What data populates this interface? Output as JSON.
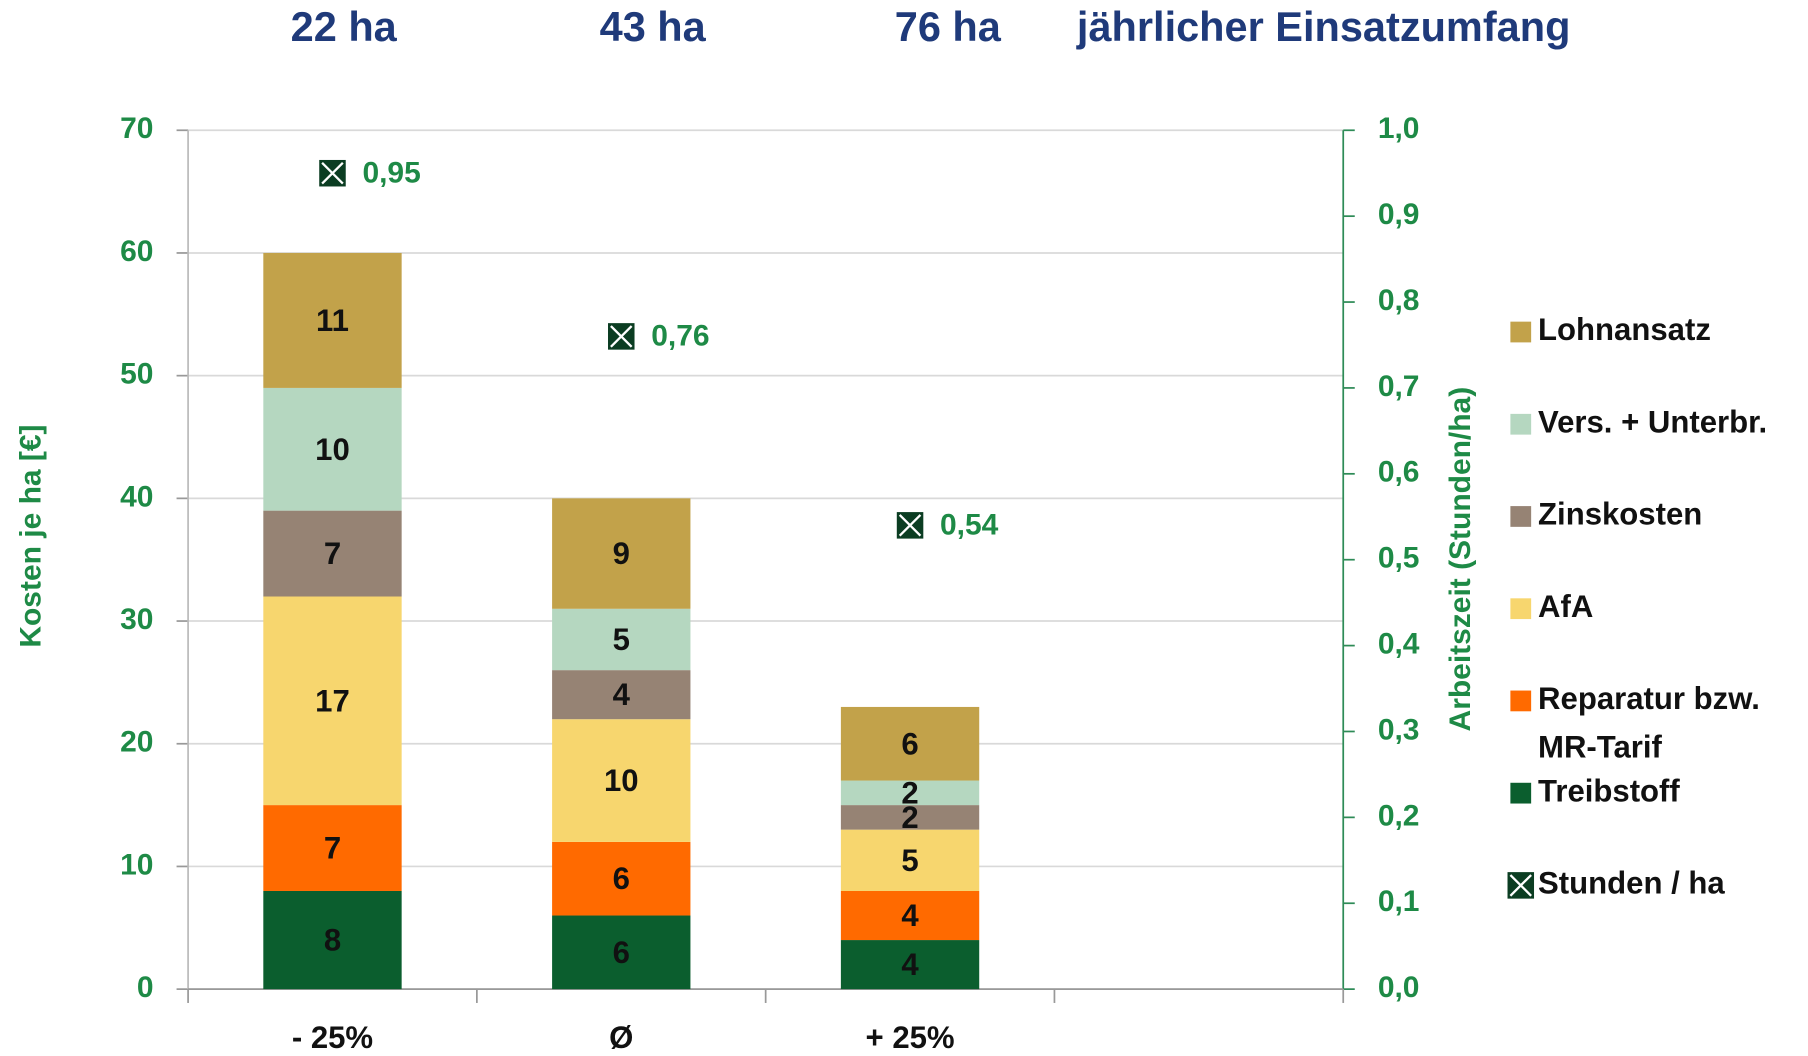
{
  "chart_data": {
    "type": "bar",
    "stacked": true,
    "annotations": [
      "22 ha",
      "43 ha",
      "76 ha",
      "jährlicher Einsatzumfang"
    ],
    "ylabel": "Kosten je ha [€]",
    "y2label": "Arbeitszeit (Stunden/ha)",
    "categories": [
      "- 25%",
      "Ø",
      "+ 25%",
      null
    ],
    "ylim": [
      0,
      70
    ],
    "yticks": [
      0,
      10,
      20,
      30,
      40,
      50,
      60,
      70
    ],
    "y2lim": [
      0,
      1
    ],
    "y2ticks": [
      {
        "value": 0,
        "label": "0,0"
      },
      {
        "value": 0.1,
        "label": "0,1"
      },
      {
        "value": 0.2,
        "label": "0,2"
      },
      {
        "value": 0.3,
        "label": "0,3"
      },
      {
        "value": 0.4,
        "label": "0,4"
      },
      {
        "value": 0.5,
        "label": "0,5"
      },
      {
        "value": 0.6,
        "label": "0,6"
      },
      {
        "value": 0.7,
        "label": "0,7"
      },
      {
        "value": 0.8,
        "label": "0,8"
      },
      {
        "value": 0.9,
        "label": "0,9"
      },
      {
        "value": 1,
        "label": "1,0"
      }
    ],
    "grid": true,
    "legend": "right",
    "series": [
      {
        "name": "Treibstoff",
        "color": "#0b5e2e",
        "values": [
          8,
          6,
          4,
          null
        ]
      },
      {
        "name": "Reparatur bzw. MR-Tarif",
        "color": "#ff6a00",
        "values": [
          7,
          6,
          4,
          null
        ]
      },
      {
        "name": "AfA",
        "color": "#f7d66e",
        "values": [
          17,
          10,
          5,
          null
        ]
      },
      {
        "name": "Zinskosten",
        "color": "#968374",
        "values": [
          7,
          4,
          2,
          null
        ]
      },
      {
        "name": "Vers. + Unterbr.",
        "color": "#b5d7c0",
        "values": [
          10,
          5,
          2,
          null
        ]
      },
      {
        "name": "Lohnansatz",
        "color": "#c2a24a",
        "values": [
          11,
          9,
          6,
          null
        ]
      },
      {
        "name": "Stunden / ha",
        "type": "scatter",
        "axis": "y2",
        "color": "#0b3d22",
        "values": [
          0.95,
          0.76,
          0.54,
          null
        ],
        "value_labels": [
          "0,95",
          "0,76",
          "0,54",
          null
        ]
      }
    ]
  }
}
